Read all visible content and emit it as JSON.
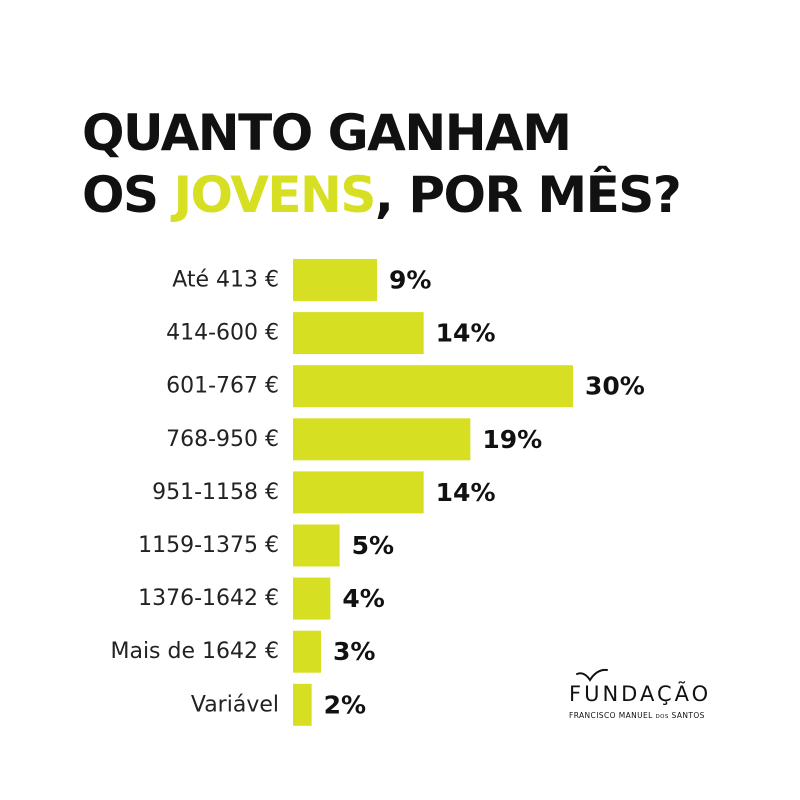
{
  "title": {
    "line1": "QUANTO GANHAM",
    "line2_before": "OS ",
    "line2_highlight": "JOVENS",
    "line2_after": ", POR MÊS?"
  },
  "colors": {
    "bar": "#d7df23",
    "highlight": "#d7df23",
    "text": "#111111"
  },
  "chart_data": {
    "type": "bar",
    "orientation": "horizontal",
    "categories": [
      "Até 413 €",
      "414-600 €",
      "601-767 €",
      "768-950 €",
      "951-1158 €",
      "1159-1375 €",
      "1376-1642 €",
      "Mais de 1642 €",
      "Variável"
    ],
    "values": [
      9,
      14,
      30,
      19,
      14,
      5,
      4,
      3,
      2
    ],
    "value_labels": [
      "9%",
      "14%",
      "30%",
      "19%",
      "14%",
      "5%",
      "4%",
      "3%",
      "2%"
    ],
    "unit": "%",
    "xlim": [
      0,
      30
    ],
    "grid": false,
    "legend": "none"
  },
  "logo": {
    "name": "FUNDAÇÃO",
    "subtitle_a": "FRANCISCO MANUEL ",
    "subtitle_b": "DOS",
    "subtitle_c": " SANTOS",
    "icon": "bird-icon"
  }
}
